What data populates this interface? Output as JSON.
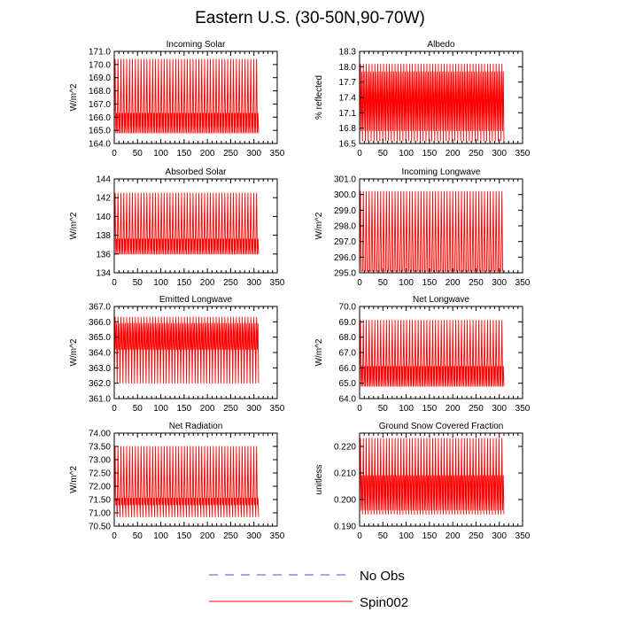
{
  "title": "Eastern U.S. (30-50N,90-70W)",
  "legend": {
    "placement": "bottom-center",
    "entries": [
      {
        "label": "No Obs",
        "color": "#4b4bd6",
        "style": "dashed"
      },
      {
        "label": "Spin002",
        "color": "#ff0000",
        "style": "solid"
      }
    ]
  },
  "chart_data": [
    {
      "type": "line",
      "title": "Incoming Solar",
      "ylabel": "W/m^2",
      "xlim": [
        0,
        350
      ],
      "xticks": [
        0,
        50,
        100,
        150,
        200,
        250,
        300,
        350
      ],
      "ylim": [
        164.0,
        171.0
      ],
      "yticks": [
        "164.0",
        "165.0",
        "166.0",
        "167.0",
        "168.0",
        "169.0",
        "170.0",
        "171.0"
      ],
      "grid": false,
      "series": [
        {
          "name": "Spin002",
          "color": "#ff0000",
          "x_range": [
            0,
            310
          ],
          "cycles": 50,
          "max": 170.4,
          "min": 164.8,
          "secondary_peak": 166.3
        }
      ]
    },
    {
      "type": "line",
      "title": "Albedo",
      "ylabel": "% reflected",
      "xlim": [
        0,
        350
      ],
      "xticks": [
        0,
        50,
        100,
        150,
        200,
        250,
        300,
        350
      ],
      "ylim": [
        16.5,
        18.3
      ],
      "yticks": [
        "16.5",
        "16.8",
        "17.1",
        "17.4",
        "17.7",
        "18.0",
        "18.3"
      ],
      "grid": false,
      "series": [
        {
          "name": "Spin002",
          "color": "#ff0000",
          "x_range": [
            0,
            310
          ],
          "cycles": 50,
          "max": 18.05,
          "min": 16.55,
          "secondary_peak": 17.9,
          "secondary_min": 16.75
        }
      ]
    },
    {
      "type": "line",
      "title": "Absorbed Solar",
      "ylabel": "W/m^2",
      "xlim": [
        0,
        350
      ],
      "xticks": [
        0,
        50,
        100,
        150,
        200,
        250,
        300,
        350
      ],
      "ylim": [
        134,
        144
      ],
      "yticks": [
        "134",
        "136",
        "138",
        "140",
        "142",
        "144"
      ],
      "grid": false,
      "series": [
        {
          "name": "Spin002",
          "color": "#ff0000",
          "x_range": [
            0,
            310
          ],
          "cycles": 50,
          "max": 142.5,
          "min": 136.0,
          "secondary_peak": 137.6
        }
      ]
    },
    {
      "type": "line",
      "title": "Incoming Longwave",
      "ylabel": "W/m^2",
      "xlim": [
        0,
        350
      ],
      "xticks": [
        0,
        50,
        100,
        150,
        200,
        250,
        300,
        350
      ],
      "ylim": [
        295.0,
        301.0
      ],
      "yticks": [
        "295.0",
        "296.0",
        "297.0",
        "298.0",
        "299.0",
        "300.0",
        "301.0"
      ],
      "grid": false,
      "series": [
        {
          "name": "Spin002",
          "color": "#ff0000",
          "x_range": [
            0,
            310
          ],
          "cycles": 50,
          "max": 300.2,
          "min": 295.1
        }
      ]
    },
    {
      "type": "line",
      "title": "Emitted Longwave",
      "ylabel": "W/m^2",
      "xlim": [
        0,
        350
      ],
      "xticks": [
        0,
        50,
        100,
        150,
        200,
        250,
        300,
        350
      ],
      "ylim": [
        361.0,
        367.0
      ],
      "yticks": [
        "361.0",
        "362.0",
        "363.0",
        "364.0",
        "365.0",
        "366.0",
        "367.0"
      ],
      "grid": false,
      "series": [
        {
          "name": "Spin002",
          "color": "#ff0000",
          "x_range": [
            0,
            310
          ],
          "cycles": 50,
          "max": 366.3,
          "min": 362.0,
          "secondary_peak": 365.9,
          "secondary_min": 364.2
        }
      ]
    },
    {
      "type": "line",
      "title": "Net Longwave",
      "ylabel": "W/m^2",
      "xlim": [
        0,
        350
      ],
      "xticks": [
        0,
        50,
        100,
        150,
        200,
        250,
        300,
        350
      ],
      "ylim": [
        64.0,
        70.0
      ],
      "yticks": [
        "64.0",
        "65.0",
        "66.0",
        "67.0",
        "68.0",
        "69.0",
        "70.0"
      ],
      "grid": false,
      "series": [
        {
          "name": "Spin002",
          "color": "#ff0000",
          "x_range": [
            0,
            310
          ],
          "cycles": 50,
          "max": 69.1,
          "min": 64.8,
          "secondary_peak": 66.1
        }
      ]
    },
    {
      "type": "line",
      "title": "Net Radiation",
      "ylabel": "W/m^2",
      "xlim": [
        0,
        350
      ],
      "xticks": [
        0,
        50,
        100,
        150,
        200,
        250,
        300,
        350
      ],
      "ylim": [
        70.5,
        74.0
      ],
      "yticks": [
        "70.50",
        "71.00",
        "71.50",
        "72.00",
        "72.50",
        "73.00",
        "73.50",
        "74.00"
      ],
      "grid": false,
      "series": [
        {
          "name": "Spin002",
          "color": "#ff0000",
          "x_range": [
            0,
            310
          ],
          "cycles": 50,
          "max": 73.5,
          "min": 70.85,
          "secondary_peak": 71.55,
          "secondary_min": 71.3
        }
      ]
    },
    {
      "type": "line",
      "title": "Ground Snow Covered Fraction",
      "ylabel": "unitless",
      "xlim": [
        0,
        350
      ],
      "xticks": [
        0,
        50,
        100,
        150,
        200,
        250,
        300,
        350
      ],
      "ylim": [
        0.19,
        0.225
      ],
      "yticks": [
        "0.190",
        "0.200",
        "0.210",
        "0.220"
      ],
      "grid": false,
      "series": [
        {
          "name": "Spin002",
          "color": "#ff0000",
          "x_range": [
            0,
            310
          ],
          "cycles": 50,
          "max": 0.223,
          "min": 0.1945,
          "secondary_peak": 0.209,
          "secondary_min": 0.196
        }
      ]
    }
  ]
}
